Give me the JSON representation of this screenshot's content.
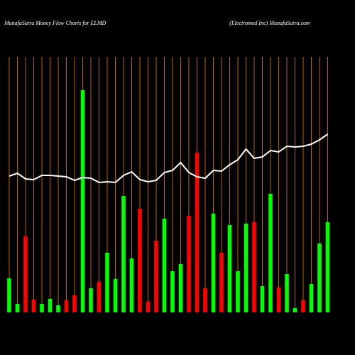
{
  "chart_data": {
    "type": "bar",
    "title": "MunafaSutra  Money Flow  Charts for ELMD",
    "subtitle": "(Electromed Inc) MunafaSutra.com",
    "categories": [
      null,
      null,
      null,
      null,
      null,
      null,
      null,
      null,
      null,
      null,
      null,
      null,
      null,
      null,
      null,
      null,
      null,
      null,
      null,
      null,
      null,
      null,
      null,
      null,
      null,
      null,
      null,
      null,
      null,
      null,
      null,
      null,
      null,
      null,
      null,
      null,
      null,
      null,
      null,
      null
    ],
    "values": [
      48,
      12,
      107,
      18,
      12,
      19,
      10,
      17,
      24,
      313,
      34,
      43,
      84,
      47,
      164,
      76,
      146,
      15,
      101,
      132,
      58,
      68,
      136,
      225,
      34,
      139,
      84,
      123,
      58,
      125,
      127,
      37,
      167,
      35,
      54,
      6,
      17,
      40,
      97,
      127
    ],
    "colors": [
      "#00ff00",
      "#00ff00",
      "#ff0000",
      "#ff0000",
      "#00ff00",
      "#00ff00",
      "#00ff00",
      "#ff0000",
      "#ff0000",
      "#00ff00",
      "#00ff00",
      "#ff0000",
      "#00ff00",
      "#00ff00",
      "#00ff00",
      "#00ff00",
      "#ff0000",
      "#ff0000",
      "#ff0000",
      "#00ff00",
      "#00ff00",
      "#00ff00",
      "#ff0000",
      "#ff0000",
      "#ff0000",
      "#00ff00",
      "#ff0000",
      "#00ff00",
      "#00ff00",
      "#00ff00",
      "#ff0000",
      "#00ff00",
      "#00ff00",
      "#ff0000",
      "#00ff00",
      "#00ff00",
      "#ff0000",
      "#00ff00",
      "#00ff00",
      "#00ff00"
    ],
    "line": {
      "color": "#ffffff",
      "values": [
        192,
        196,
        188,
        187,
        193,
        193,
        192,
        191,
        186,
        190,
        189,
        183,
        184,
        183,
        193,
        198,
        187,
        184,
        186,
        197,
        200,
        211,
        197,
        191,
        189,
        200,
        199,
        208,
        215,
        230,
        217,
        219,
        228,
        226,
        234,
        233,
        234,
        237,
        243,
        251
      ]
    },
    "ylim": [
      0,
      330
    ],
    "grid": true,
    "grid_color": "#b8650a"
  }
}
